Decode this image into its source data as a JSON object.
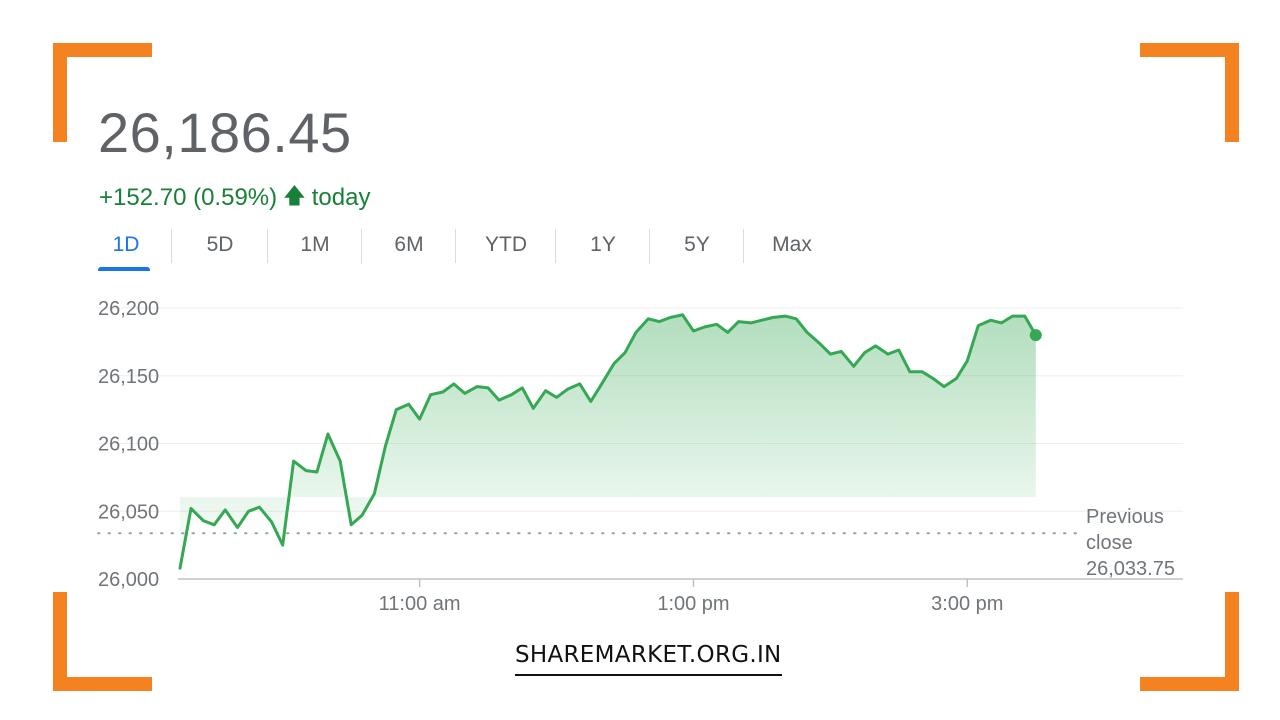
{
  "quote": {
    "price": "26,186.45",
    "change": "+152.70 (0.59%)",
    "change_suffix": "today",
    "arrow_icon": "arrow-up-icon"
  },
  "tabs": [
    {
      "label": "1D",
      "active": true
    },
    {
      "label": "5D"
    },
    {
      "label": "1M"
    },
    {
      "label": "6M"
    },
    {
      "label": "YTD"
    },
    {
      "label": "1Y"
    },
    {
      "label": "5Y"
    },
    {
      "label": "Max"
    }
  ],
  "footer": {
    "brand": "SHAREMARKET.ORG.IN"
  },
  "colors": {
    "line": "#34a853",
    "accent": "#1a73e8",
    "positive": "#188038",
    "frame": "#f58220"
  },
  "chart_data": {
    "type": "area",
    "x_unit": "hour of day",
    "xlim": [
      9.25,
      15.75
    ],
    "ylim": [
      26000,
      26200
    ],
    "yticks": [
      26000,
      26050,
      26100,
      26150,
      26200
    ],
    "ytick_labels": [
      "26,000",
      "26,050",
      "26,100",
      "26,150",
      "26,200"
    ],
    "xticks": [
      11,
      13,
      15
    ],
    "xtick_labels": [
      "11:00 am",
      "1:00 pm",
      "3:00 pm"
    ],
    "grid": true,
    "previous_close": {
      "value": 26033.75,
      "label_line1": "Previous",
      "label_line2": "close",
      "label_value": "26,033.75"
    },
    "series": [
      {
        "x": [
          9.25,
          9.33,
          9.42,
          9.5,
          9.58,
          9.67,
          9.75,
          9.83,
          9.92,
          10.0,
          10.08,
          10.17,
          10.25,
          10.33,
          10.42,
          10.5,
          10.58,
          10.67,
          10.75,
          10.83,
          10.92,
          11.0,
          11.08,
          11.17,
          11.25,
          11.33,
          11.42,
          11.5,
          11.58,
          11.67,
          11.75,
          11.83,
          11.92,
          12.0,
          12.08,
          12.17,
          12.25,
          12.33,
          12.42,
          12.5,
          12.58,
          12.67,
          12.75,
          12.83,
          12.92,
          13.0,
          13.08,
          13.17,
          13.25,
          13.33,
          13.42,
          13.5,
          13.58,
          13.67,
          13.75,
          13.83,
          13.92,
          14.0,
          14.08,
          14.17,
          14.25,
          14.33,
          14.42,
          14.5,
          14.58,
          14.67,
          14.75,
          14.83,
          14.92,
          15.0,
          15.08,
          15.17,
          15.25,
          15.33,
          15.42,
          15.5
        ],
        "y": [
          26008,
          26052,
          26043,
          26040,
          26051,
          26038,
          26050,
          26053,
          26042,
          26025,
          26087,
          26080,
          26079,
          26107,
          26087,
          26040,
          26047,
          26063,
          26098,
          26125,
          26129,
          26118,
          26136,
          26138,
          26144,
          26137,
          26142,
          26141,
          26132,
          26136,
          26141,
          26126,
          26139,
          26134,
          26140,
          26144,
          26131,
          26144,
          26159,
          26167,
          26182,
          26192,
          26190,
          26193,
          26195,
          26183,
          26186,
          26188,
          26182,
          26190,
          26189,
          26191,
          26193,
          26194,
          26192,
          26182,
          26174,
          26166,
          26168,
          26157,
          26167,
          26172,
          26166,
          26169,
          26153,
          26153,
          26148,
          26142,
          26148,
          26161,
          26187,
          26191,
          26189,
          26194,
          26194,
          26180
        ]
      }
    ]
  }
}
